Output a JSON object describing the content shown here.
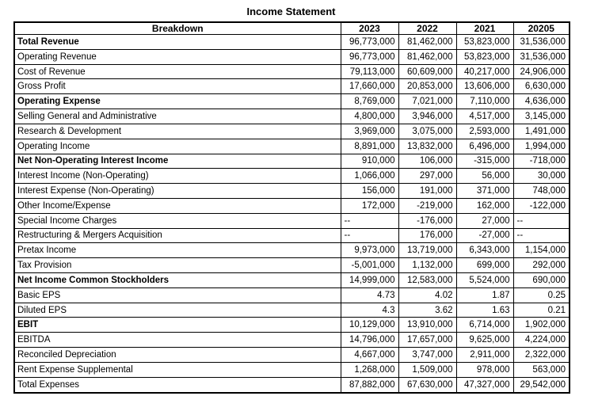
{
  "title": "Income Statement",
  "table": {
    "columns": [
      "Breakdown",
      "2023",
      "2022",
      "2021",
      "20205"
    ],
    "rows": [
      {
        "label": "Total Revenue",
        "bold": true,
        "values": [
          "96,773,000",
          "81,462,000",
          "53,823,000",
          "31,536,000"
        ]
      },
      {
        "label": "Operating Revenue",
        "bold": false,
        "values": [
          "96,773,000",
          "81,462,000",
          "53,823,000",
          "31,536,000"
        ]
      },
      {
        "label": "Cost of Revenue",
        "bold": false,
        "values": [
          "79,113,000",
          "60,609,000",
          "40,217,000",
          "24,906,000"
        ]
      },
      {
        "label": "Gross Profit",
        "bold": false,
        "values": [
          "17,660,000",
          "20,853,000",
          "13,606,000",
          "6,630,000"
        ]
      },
      {
        "label": "Operating Expense",
        "bold": true,
        "values": [
          "8,769,000",
          "7,021,000",
          "7,110,000",
          "4,636,000"
        ]
      },
      {
        "label": "Selling General and Administrative",
        "bold": false,
        "values": [
          "4,800,000",
          "3,946,000",
          "4,517,000",
          "3,145,000"
        ]
      },
      {
        "label": "Research & Development",
        "bold": false,
        "values": [
          "3,969,000",
          "3,075,000",
          "2,593,000",
          "1,491,000"
        ]
      },
      {
        "label": "Operating Income",
        "bold": false,
        "values": [
          "8,891,000",
          "13,832,000",
          "6,496,000",
          "1,994,000"
        ]
      },
      {
        "label": "Net Non-Operating Interest Income",
        "bold": true,
        "values": [
          "910,000",
          "106,000",
          "-315,000",
          "-718,000"
        ]
      },
      {
        "label": "Interest Income (Non-Operating)",
        "bold": false,
        "values": [
          "1,066,000",
          "297,000",
          "56,000",
          "30,000"
        ]
      },
      {
        "label": "Interest Expense (Non-Operating)",
        "bold": false,
        "values": [
          "156,000",
          "191,000",
          "371,000",
          "748,000"
        ]
      },
      {
        "label": "Other Income/Expense",
        "bold": false,
        "values": [
          "172,000",
          "-219,000",
          "162,000",
          "-122,000"
        ]
      },
      {
        "label": "Special Income Charges",
        "bold": false,
        "values": [
          "--",
          "-176,000",
          "27,000",
          "--"
        ]
      },
      {
        "label": "Restructuring & Mergers Acquisition",
        "bold": false,
        "values": [
          "--",
          "176,000",
          "-27,000",
          "--"
        ]
      },
      {
        "label": "Pretax Income",
        "bold": false,
        "values": [
          "9,973,000",
          "13,719,000",
          "6,343,000",
          "1,154,000"
        ]
      },
      {
        "label": "Tax Provision",
        "bold": false,
        "values": [
          "-5,001,000",
          "1,132,000",
          "699,000",
          "292,000"
        ]
      },
      {
        "label": "Net Income Common Stockholders",
        "bold": true,
        "values": [
          "14,999,000",
          "12,583,000",
          "5,524,000",
          "690,000"
        ]
      },
      {
        "label": "Basic EPS",
        "bold": false,
        "values": [
          "4.73",
          "4.02",
          "1.87",
          "0.25"
        ]
      },
      {
        "label": "Diluted EPS",
        "bold": false,
        "values": [
          "4.3",
          "3.62",
          "1.63",
          "0.21"
        ]
      },
      {
        "label": "EBIT",
        "bold": true,
        "values": [
          "10,129,000",
          "13,910,000",
          "6,714,000",
          "1,902,000"
        ]
      },
      {
        "label": "EBITDA",
        "bold": false,
        "values": [
          "14,796,000",
          "17,657,000",
          "9,625,000",
          "4,224,000"
        ]
      },
      {
        "label": "Reconciled Depreciation",
        "bold": false,
        "values": [
          "4,667,000",
          "3,747,000",
          "2,911,000",
          "2,322,000"
        ]
      },
      {
        "label": "Rent Expense Supplemental",
        "bold": false,
        "values": [
          "1,268,000",
          "1,509,000",
          "978,000",
          "563,000"
        ]
      },
      {
        "label": "Total Expenses",
        "bold": false,
        "values": [
          "87,882,000",
          "67,630,000",
          "47,327,000",
          "29,542,000"
        ]
      }
    ]
  }
}
